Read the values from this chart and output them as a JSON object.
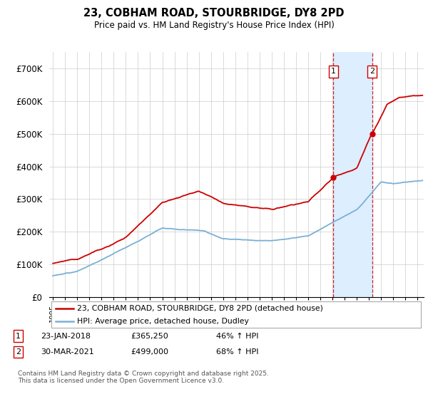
{
  "title": "23, COBHAM ROAD, STOURBRIDGE, DY8 2PD",
  "subtitle": "Price paid vs. HM Land Registry's House Price Index (HPI)",
  "ylabel_ticks": [
    "£0",
    "£100K",
    "£200K",
    "£300K",
    "£400K",
    "£500K",
    "£600K",
    "£700K"
  ],
  "ytick_vals": [
    0,
    100000,
    200000,
    300000,
    400000,
    500000,
    600000,
    700000
  ],
  "ylim": [
    0,
    750000
  ],
  "xlim_start": 1994.7,
  "xlim_end": 2025.5,
  "sale1_date": 2018.07,
  "sale1_price": 365250,
  "sale2_date": 2021.25,
  "sale2_price": 499000,
  "red_line_color": "#cc0000",
  "blue_line_color": "#7ab0d4",
  "shade_color": "#ddeeff",
  "grid_color": "#cccccc",
  "background_color": "#ffffff",
  "legend_line1": "23, COBHAM ROAD, STOURBRIDGE, DY8 2PD (detached house)",
  "legend_line2": "HPI: Average price, detached house, Dudley",
  "footnote": "Contains HM Land Registry data © Crown copyright and database right 2025.\nThis data is licensed under the Open Government Licence v3.0."
}
